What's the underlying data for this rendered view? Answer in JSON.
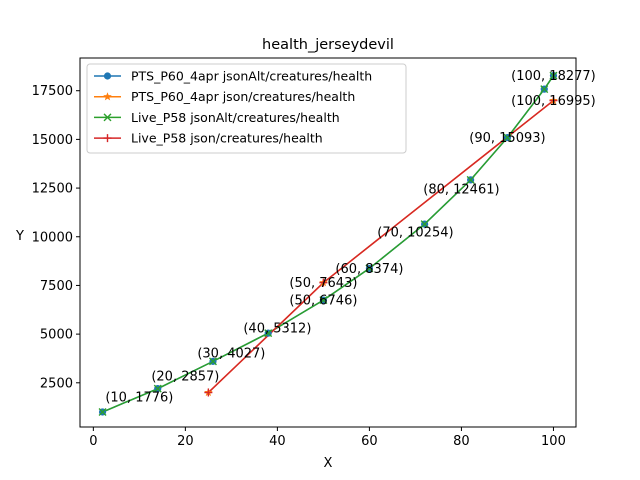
{
  "chart_data": {
    "type": "line",
    "title": "health_jerseydevil",
    "xlabel": "X",
    "ylabel": "Y",
    "xlim": [
      -2.9,
      104.9
    ],
    "ylim": [
      230,
      19180
    ],
    "xticks": [
      0,
      20,
      40,
      60,
      80,
      100
    ],
    "yticks": [
      2500,
      5000,
      7500,
      10000,
      12500,
      15000,
      17500
    ],
    "grid": false,
    "legend_position": "upper-left",
    "series": [
      {
        "name": "PTS_P60_4apr jsonAlt/creatures/health",
        "color": "#1f77b4",
        "marker": "circle",
        "x": [
          2,
          14,
          26,
          38,
          50,
          60,
          72,
          82,
          90,
          98,
          100
        ],
        "y": [
          1000,
          2200,
          3600,
          5050,
          6746,
          8374,
          10650,
          12920,
          15093,
          17580,
          18277
        ]
      },
      {
        "name": "PTS_P60_4apr json/creatures/health",
        "color": "#ff7f0e",
        "marker": "star",
        "x": [
          25,
          50,
          100
        ],
        "y": [
          2000,
          7643,
          16995
        ]
      },
      {
        "name": "Live_P58 jsonAlt/creatures/health",
        "color": "#2ca02c",
        "marker": "x",
        "x": [
          2,
          14,
          26,
          38,
          50,
          60,
          72,
          82,
          90,
          98,
          100
        ],
        "y": [
          1000,
          2200,
          3600,
          5050,
          6746,
          8374,
          10650,
          12920,
          15093,
          17580,
          18277
        ]
      },
      {
        "name": "Live_P58 json/creatures/health",
        "color": "#d62728",
        "marker": "plus",
        "x": [
          25,
          50,
          100
        ],
        "y": [
          2000,
          7643,
          16995
        ]
      }
    ],
    "annotations": [
      {
        "text": "(10, 1776)",
        "x": 10,
        "y": 1776
      },
      {
        "text": "(20, 2857)",
        "x": 20,
        "y": 2857
      },
      {
        "text": "(30, 4027)",
        "x": 30,
        "y": 4027
      },
      {
        "text": "(40, 5312)",
        "x": 40,
        "y": 5312
      },
      {
        "text": "(50, 6746)",
        "x": 50,
        "y": 6746
      },
      {
        "text": "(50, 7643)",
        "x": 50,
        "y": 7643
      },
      {
        "text": "(60, 8374)",
        "x": 60,
        "y": 8374
      },
      {
        "text": "(70, 10254)",
        "x": 70,
        "y": 10254
      },
      {
        "text": "(80, 12461)",
        "x": 80,
        "y": 12461
      },
      {
        "text": "(90, 15093)",
        "x": 90,
        "y": 15093
      },
      {
        "text": "(100, 16995)",
        "x": 100,
        "y": 16995
      },
      {
        "text": "(100, 18277)",
        "x": 100,
        "y": 18277
      }
    ]
  }
}
